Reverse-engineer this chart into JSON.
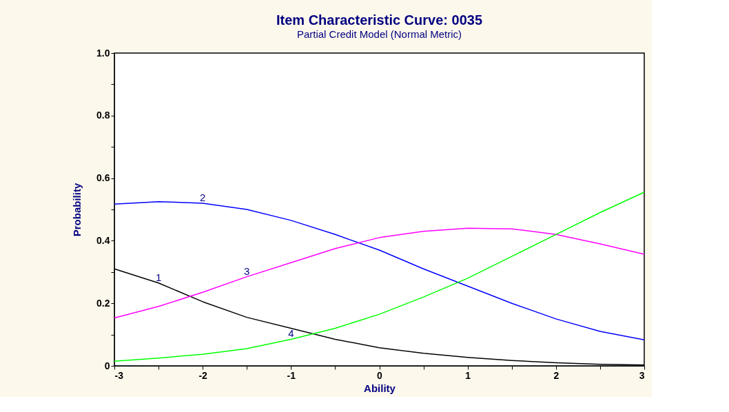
{
  "chart_data": {
    "type": "line",
    "title": "Item Characteristic Curve: 0035",
    "subtitle": "Partial Credit Model (Normal Metric)",
    "xlabel": "Ability",
    "ylabel": "Probability",
    "x": [
      -3,
      -2.5,
      -2,
      -1.5,
      -1,
      -0.5,
      0,
      0.5,
      1,
      1.5,
      2,
      2.5,
      3
    ],
    "series": [
      {
        "color": "#000000",
        "values": [
          0.31,
          0.265,
          0.205,
          0.155,
          0.12,
          0.085,
          0.058,
          0.04,
          0.027,
          0.017,
          0.01,
          0.005,
          0.003
        ]
      },
      {
        "color": "#0000ff",
        "values": [
          0.517,
          0.525,
          0.52,
          0.5,
          0.465,
          0.42,
          0.37,
          0.31,
          0.255,
          0.2,
          0.15,
          0.11,
          0.083
        ]
      },
      {
        "color": "#ff00ff",
        "values": [
          0.153,
          0.19,
          0.235,
          0.285,
          0.33,
          0.375,
          0.41,
          0.43,
          0.44,
          0.438,
          0.42,
          0.39,
          0.357
        ]
      },
      {
        "color": "#00ff00",
        "values": [
          0.015,
          0.025,
          0.037,
          0.055,
          0.085,
          0.12,
          0.165,
          0.22,
          0.28,
          0.35,
          0.42,
          0.49,
          0.555
        ]
      }
    ],
    "annotations": [
      {
        "text": "1",
        "x": -2.5,
        "y": 0.265
      },
      {
        "text": "2",
        "x": -2,
        "y": 0.52
      },
      {
        "text": "3",
        "x": -1.5,
        "y": 0.285
      },
      {
        "text": "4",
        "x": -1,
        "y": 0.085
      }
    ],
    "xlim": [
      -3,
      3
    ],
    "ylim": [
      0,
      1
    ],
    "xticks": [
      -3,
      {
        "value": -2.5,
        "label": null
      },
      -2,
      {
        "value": -1.5,
        "label": null
      },
      -1,
      {
        "value": -0.5,
        "label": null
      },
      0,
      {
        "value": 0.5,
        "label": null
      },
      1,
      {
        "value": 1.5,
        "label": null
      },
      2,
      {
        "value": 2.5,
        "label": null
      },
      3
    ],
    "yticks": [
      0,
      {
        "value": 0.1,
        "label": null
      },
      0.2,
      {
        "value": 0.3,
        "label": null
      },
      0.4,
      {
        "value": 0.5,
        "label": null
      },
      0.6,
      {
        "value": 0.7,
        "label": null
      },
      0.8,
      {
        "value": 0.9,
        "label": null
      },
      {
        "value": 1,
        "label": "1.0"
      }
    ],
    "grid": false,
    "marker": "none",
    "line_style": "solid"
  }
}
